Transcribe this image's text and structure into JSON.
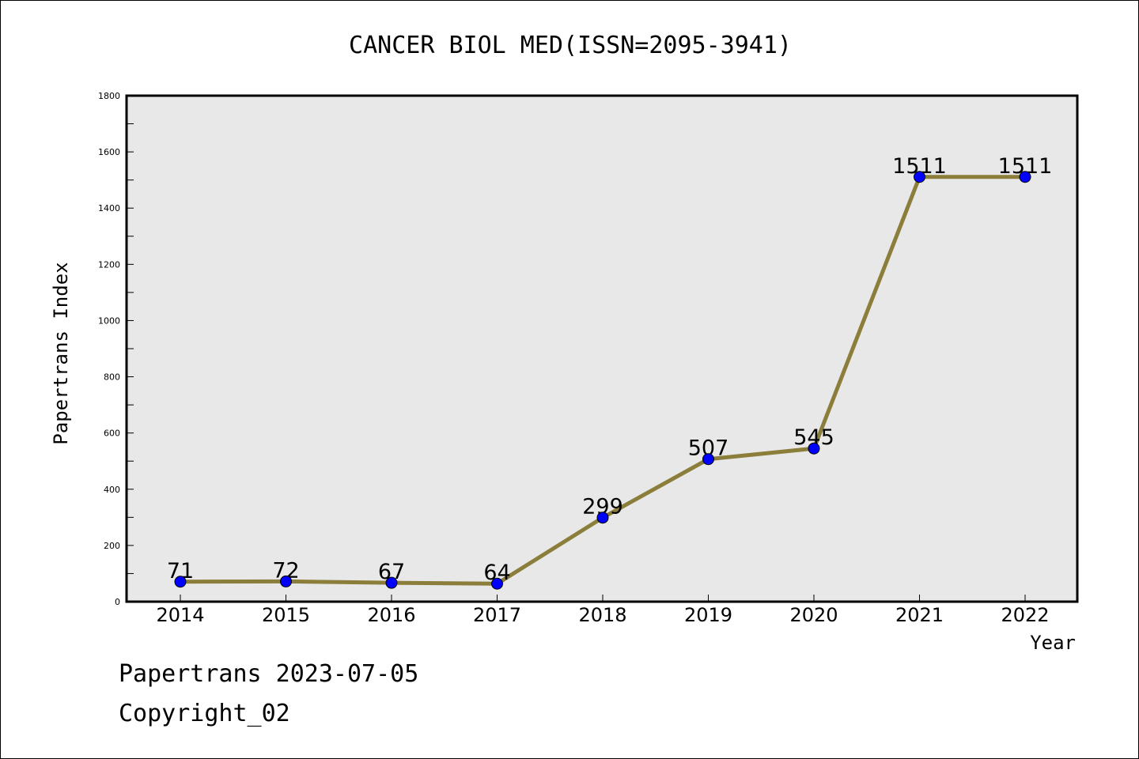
{
  "chart_data": {
    "type": "line",
    "title": "CANCER BIOL MED(ISSN=2095-3941)",
    "xlabel": "Year",
    "ylabel": "Papertrans Index",
    "categories": [
      "2014",
      "2015",
      "2016",
      "2017",
      "2018",
      "2019",
      "2020",
      "2021",
      "2022"
    ],
    "values": [
      71,
      72,
      67,
      64,
      299,
      507,
      545,
      1511,
      1511
    ],
    "data_labels": [
      "71",
      "72",
      "67",
      "64",
      "299",
      "507",
      "545",
      "1511",
      "1511"
    ],
    "ylim": [
      0,
      1800
    ],
    "yticks": [
      0,
      200,
      400,
      600,
      800,
      1000,
      1200,
      1400,
      1600,
      1800
    ],
    "ytick_labels": [
      "0",
      "200",
      "400",
      "600",
      "800",
      "1000",
      "1200",
      "1400",
      "1600",
      "1800"
    ],
    "grid": false,
    "colors": {
      "line": "#8b7d3a",
      "marker": "#0000ff",
      "plot_background": "#e8e8e8"
    }
  },
  "footer": {
    "line1": "Papertrans 2023-07-05",
    "line2": "Copyright_02"
  }
}
